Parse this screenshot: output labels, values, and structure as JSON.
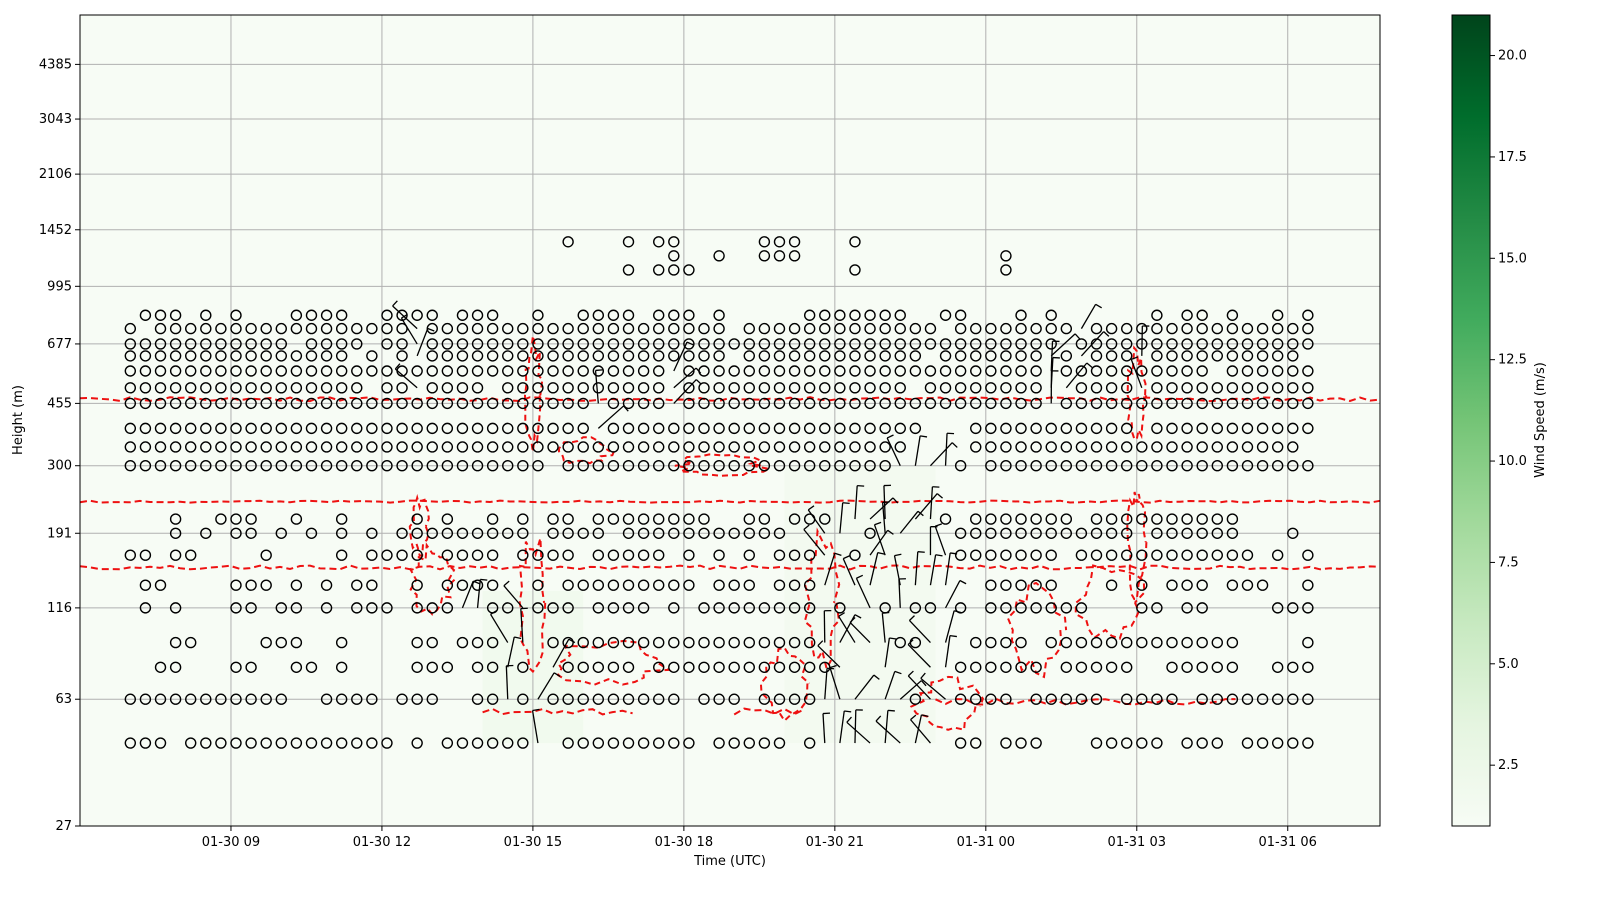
{
  "chart_data": {
    "type": "heatmap",
    "xlabel": "Time (UTC)",
    "ylabel": "Height (m)",
    "colorbar_label": "Wind Speed (m/s)",
    "x_ticks": [
      "01-30 09",
      "01-30 12",
      "01-30 15",
      "01-30 18",
      "01-30 21",
      "01-31 00",
      "01-31 03",
      "01-31 06"
    ],
    "y_ticks": [
      "27",
      "63",
      "116",
      "191",
      "300",
      "455",
      "677",
      "995",
      "1452",
      "2106",
      "3043",
      "4385"
    ],
    "colorbar_ticks": [
      "2.5",
      "5.0",
      "7.5",
      "10.0",
      "12.5",
      "15.0",
      "17.5",
      "20.0"
    ],
    "colorbar_range": [
      1,
      21
    ],
    "colormap": [
      "#f7fcf5",
      "#e5f5e0",
      "#c7e9c0",
      "#a1d99b",
      "#74c476",
      "#41ab5d",
      "#238b45",
      "#006d2c",
      "#00441b"
    ],
    "grid": true,
    "overlay": "wind barbs (circles = calm) and red dashed contour lines",
    "barb_grid": {
      "x_range": [
        "01-30 07:00",
        "01-31 06:30"
      ],
      "x_step_minutes": 18,
      "levels": [
        "47",
        "63",
        "78",
        "92",
        "116",
        "135",
        "165",
        "191",
        "210",
        "300",
        "340",
        "385",
        "455",
        "505",
        "565",
        "625",
        "677",
        "750",
        "820",
        "1110",
        "1220",
        "1340"
      ]
    },
    "shading_regions": [
      {
        "t": [
          "01-30 14:00",
          "01-30 16:00"
        ],
        "z": [
          47,
          130
        ],
        "speed": 1.8
      },
      {
        "t": [
          "01-30 20:00",
          "01-30 23:00"
        ],
        "z": [
          47,
          300
        ],
        "speed": 1.6
      }
    ]
  }
}
